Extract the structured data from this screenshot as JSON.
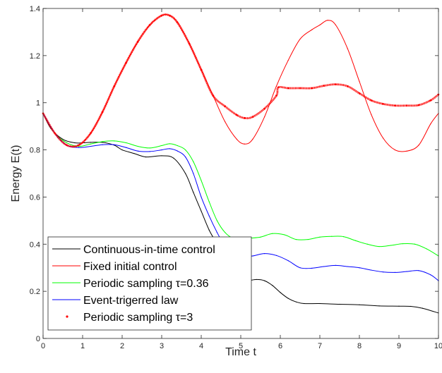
{
  "chart_data": {
    "type": "line",
    "title": "",
    "xlabel": "Time t",
    "ylabel": "Energy E(t)",
    "xlim": [
      0,
      10
    ],
    "ylim": [
      0,
      1.4
    ],
    "xticks": [
      0,
      1,
      2,
      3,
      4,
      5,
      6,
      7,
      8,
      9,
      10
    ],
    "yticks": [
      0,
      0.2,
      0.4,
      0.6,
      0.8,
      1,
      1.2,
      1.4
    ],
    "xtick_labels": [
      "0",
      "1",
      "2",
      "3",
      "4",
      "5",
      "6",
      "7",
      "8",
      "9",
      "10"
    ],
    "ytick_labels": [
      "0",
      "0.2",
      "0.4",
      "0.6",
      "0.8",
      "1",
      "1.2",
      "1.4"
    ],
    "grid": false,
    "legend_position": "bottom-left",
    "series": [
      {
        "name": "Continuous-in-time control",
        "color": "#000000",
        "style": "line",
        "x": [
          0,
          0.2,
          0.5,
          0.8,
          1.0,
          1.2,
          1.5,
          1.8,
          2.0,
          2.3,
          2.6,
          3.0,
          3.3,
          3.6,
          3.8,
          4.0,
          4.2,
          4.4,
          4.6,
          4.8,
          5.0,
          5.2,
          5.4,
          5.6,
          5.8,
          6.0,
          6.2,
          6.4,
          6.6,
          7.0,
          7.5,
          8.0,
          8.5,
          9.0,
          9.3,
          9.6,
          10.0
        ],
        "y": [
          0.955,
          0.89,
          0.845,
          0.83,
          0.83,
          0.832,
          0.832,
          0.82,
          0.8,
          0.785,
          0.77,
          0.775,
          0.765,
          0.7,
          0.62,
          0.54,
          0.46,
          0.4,
          0.33,
          0.275,
          0.24,
          0.245,
          0.25,
          0.245,
          0.225,
          0.195,
          0.17,
          0.155,
          0.148,
          0.148,
          0.145,
          0.143,
          0.138,
          0.137,
          0.136,
          0.128,
          0.108
        ]
      },
      {
        "name": "Fixed initial control",
        "color": "#ff0000",
        "style": "line",
        "x": [
          0,
          0.3,
          0.6,
          0.9,
          1.2,
          1.5,
          1.8,
          2.1,
          2.4,
          2.7,
          3.0,
          3.2,
          3.4,
          3.7,
          4.0,
          4.3,
          4.6,
          4.9,
          5.1,
          5.3,
          5.6,
          5.9,
          6.2,
          6.5,
          6.8,
          7.0,
          7.2,
          7.4,
          7.7,
          8.0,
          8.3,
          8.6,
          8.9,
          9.2,
          9.5,
          9.8,
          10.0
        ],
        "y": [
          0.955,
          0.87,
          0.82,
          0.82,
          0.87,
          0.96,
          1.07,
          1.17,
          1.26,
          1.33,
          1.37,
          1.37,
          1.34,
          1.25,
          1.14,
          1.03,
          0.92,
          0.845,
          0.825,
          0.845,
          0.94,
          1.07,
          1.18,
          1.27,
          1.31,
          1.33,
          1.35,
          1.33,
          1.23,
          1.09,
          0.95,
          0.85,
          0.8,
          0.795,
          0.82,
          0.91,
          0.955
        ]
      },
      {
        "name": "Periodic sampling τ=0.36",
        "color": "#00ff00",
        "style": "line",
        "x": [
          0,
          0.3,
          0.6,
          0.9,
          1.2,
          1.5,
          1.8,
          2.1,
          2.4,
          2.7,
          3.0,
          3.2,
          3.4,
          3.6,
          3.8,
          4.0,
          4.2,
          4.4,
          4.6,
          4.8,
          5.0,
          5.2,
          5.5,
          5.8,
          6.1,
          6.4,
          6.7,
          7.0,
          7.3,
          7.6,
          7.9,
          8.2,
          8.5,
          8.8,
          9.1,
          9.4,
          9.7,
          10.0
        ],
        "y": [
          0.955,
          0.87,
          0.83,
          0.815,
          0.825,
          0.835,
          0.838,
          0.83,
          0.815,
          0.808,
          0.818,
          0.826,
          0.818,
          0.8,
          0.75,
          0.67,
          0.58,
          0.5,
          0.45,
          0.425,
          0.42,
          0.425,
          0.43,
          0.445,
          0.44,
          0.42,
          0.42,
          0.43,
          0.433,
          0.432,
          0.415,
          0.4,
          0.39,
          0.395,
          0.402,
          0.4,
          0.38,
          0.35
        ]
      },
      {
        "name": "Event-trigerred law",
        "color": "#0000ff",
        "style": "line",
        "x": [
          0,
          0.3,
          0.6,
          0.9,
          1.2,
          1.5,
          1.8,
          2.1,
          2.4,
          2.7,
          3.0,
          3.2,
          3.4,
          3.6,
          3.8,
          4.0,
          4.2,
          4.4,
          4.6,
          4.8,
          5.0,
          5.3,
          5.6,
          5.9,
          6.2,
          6.5,
          6.8,
          7.1,
          7.4,
          7.7,
          8.0,
          8.3,
          8.6,
          8.9,
          9.2,
          9.5,
          9.8,
          10.0
        ],
        "y": [
          0.955,
          0.87,
          0.82,
          0.81,
          0.815,
          0.822,
          0.822,
          0.81,
          0.795,
          0.793,
          0.8,
          0.805,
          0.795,
          0.77,
          0.7,
          0.6,
          0.52,
          0.45,
          0.39,
          0.35,
          0.345,
          0.35,
          0.36,
          0.352,
          0.33,
          0.3,
          0.298,
          0.305,
          0.31,
          0.305,
          0.3,
          0.29,
          0.282,
          0.28,
          0.284,
          0.288,
          0.27,
          0.245
        ]
      },
      {
        "name": "Periodic sampling τ=3",
        "color": "#ff0000",
        "style": "dots",
        "x": [
          0,
          0.3,
          0.6,
          0.9,
          1.2,
          1.5,
          1.8,
          2.1,
          2.4,
          2.7,
          3.0,
          3.2,
          3.4,
          3.7,
          4.0,
          4.3,
          4.6,
          4.9,
          5.1,
          5.3,
          5.6,
          5.9,
          5.95,
          6.2,
          6.5,
          6.8,
          7.1,
          7.4,
          7.7,
          8.0,
          8.3,
          8.6,
          8.9,
          9.2,
          9.5,
          9.8,
          10.0
        ],
        "y": [
          0.955,
          0.87,
          0.82,
          0.82,
          0.87,
          0.96,
          1.07,
          1.17,
          1.26,
          1.33,
          1.37,
          1.37,
          1.34,
          1.25,
          1.14,
          1.03,
          0.985,
          0.948,
          0.935,
          0.94,
          0.975,
          1.03,
          1.065,
          1.062,
          1.062,
          1.062,
          1.072,
          1.078,
          1.07,
          1.04,
          1.01,
          0.995,
          0.988,
          0.988,
          0.99,
          1.01,
          1.035
        ]
      }
    ]
  }
}
